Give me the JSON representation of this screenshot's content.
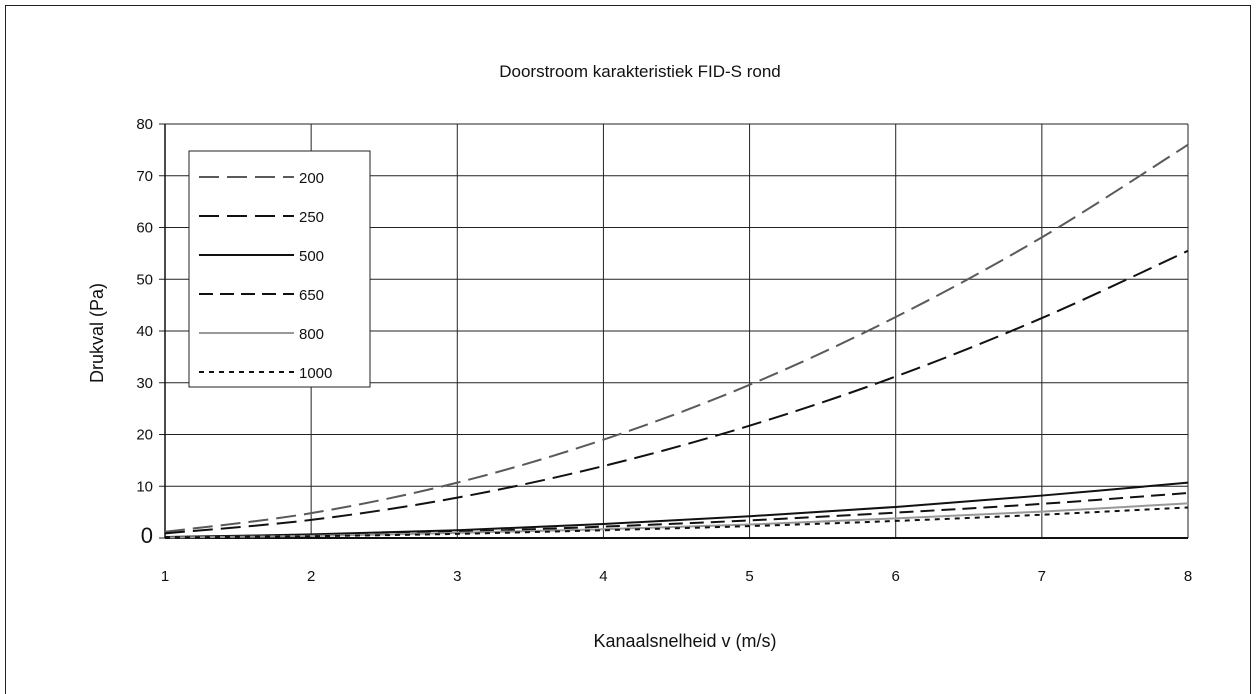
{
  "chart_data": {
    "type": "line",
    "title": "Doorstroom karakteristiek FID-S rond",
    "xlabel": "Kanaalsnelheid v (m/s)",
    "ylabel": "Drukval (Pa)",
    "xlim": [
      1,
      8
    ],
    "ylim": [
      0,
      80
    ],
    "x_ticks": [
      "1",
      "2",
      "3",
      "4",
      "5",
      "6",
      "7",
      "8"
    ],
    "y_ticks": [
      "0",
      "10",
      "20",
      "30",
      "40",
      "50",
      "60",
      "70",
      "80"
    ],
    "grid": true,
    "legend_position": "top-left",
    "x": [
      1,
      2,
      3,
      4,
      5,
      6,
      7,
      8
    ],
    "series": [
      {
        "name": "200",
        "values": [
          1.2,
          4.8,
          10.7,
          19.0,
          29.6,
          42.7,
          58.1,
          76.0
        ],
        "color": "#5a5a5a",
        "dash": "long"
      },
      {
        "name": "250",
        "values": [
          0.9,
          3.5,
          7.8,
          13.9,
          21.7,
          31.2,
          42.5,
          55.5
        ],
        "color": "#111111",
        "dash": "long"
      },
      {
        "name": "500",
        "values": [
          0.2,
          0.7,
          1.5,
          2.7,
          4.2,
          6.0,
          8.2,
          10.7
        ],
        "color": "#111111",
        "dash": "solid"
      },
      {
        "name": "650",
        "values": [
          0.15,
          0.55,
          1.2,
          2.2,
          3.4,
          4.9,
          6.6,
          8.7
        ],
        "color": "#111111",
        "dash": "medium"
      },
      {
        "name": "800",
        "values": [
          0.1,
          0.4,
          1.0,
          1.7,
          2.6,
          3.8,
          5.1,
          6.7
        ],
        "color": "#999999",
        "dash": "solid"
      },
      {
        "name": "1000",
        "values": [
          0.1,
          0.35,
          0.8,
          1.5,
          2.3,
          3.3,
          4.5,
          5.9
        ],
        "color": "#111111",
        "dash": "short"
      }
    ]
  }
}
